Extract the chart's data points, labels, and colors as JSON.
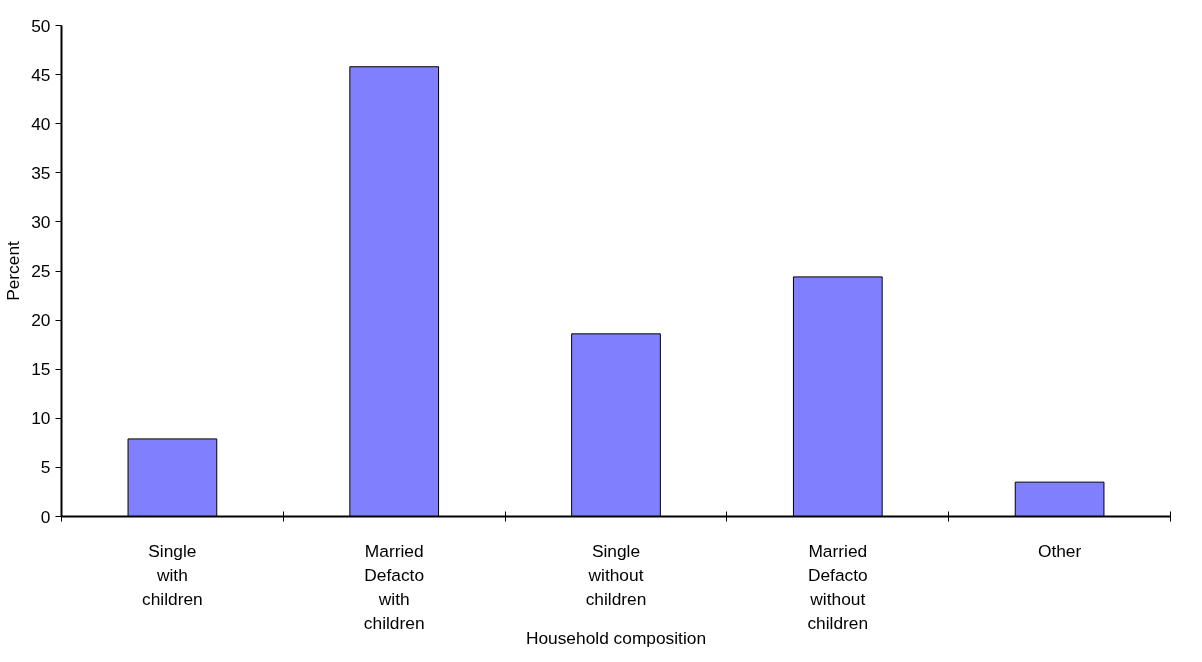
{
  "chart_data": {
    "type": "bar",
    "categories": [
      "Single\nwith\nchildren",
      "Married\nDefacto\nwith\nchildren",
      "Single\nwithout\nchildren",
      "Married\nDefacto\nwithout\nchildren",
      "Other"
    ],
    "values": [
      7.9,
      45.8,
      18.6,
      24.4,
      3.5
    ],
    "color": "#8080ff",
    "xlabel": "Household composition",
    "ylabel": "Percent",
    "ylim": [
      0,
      50
    ],
    "yticks": [
      0,
      5,
      10,
      15,
      20,
      25,
      30,
      35,
      40,
      45,
      50
    ],
    "grid": false
  }
}
